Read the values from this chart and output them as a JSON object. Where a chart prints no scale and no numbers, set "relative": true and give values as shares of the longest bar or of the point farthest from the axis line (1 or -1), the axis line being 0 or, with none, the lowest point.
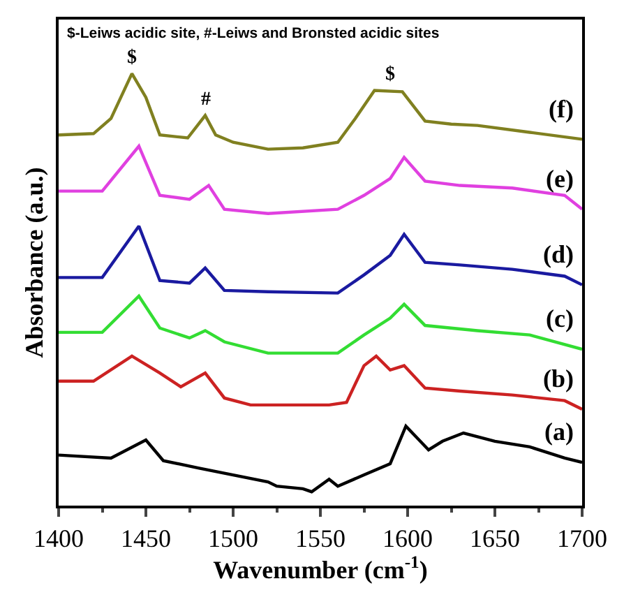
{
  "chart_data": {
    "type": "line",
    "relative": true,
    "xlabel": "Wavenumber (cm$^{-1}$)",
    "ylabel": "Absorbance (a.u.)",
    "xlim": [
      1400,
      1700
    ],
    "xticks": [
      1400,
      1450,
      1500,
      1550,
      1600,
      1650,
      1700
    ],
    "legend": false,
    "marker": "none",
    "line_style": "solid",
    "series": [
      {
        "name": "(a)",
        "color": "#000000",
        "x": [
          1400,
          1430,
          1450,
          1460,
          1480,
          1500,
          1520,
          1525,
          1540,
          1545,
          1555,
          1560,
          1575,
          1590,
          1599,
          1612,
          1620,
          1632,
          1650,
          1670,
          1690,
          1700
        ],
        "values": [
          0.117,
          0.11,
          0.152,
          0.104,
          0.087,
          0.071,
          0.055,
          0.045,
          0.039,
          0.032,
          0.061,
          0.045,
          0.071,
          0.097,
          0.184,
          0.129,
          0.149,
          0.168,
          0.149,
          0.136,
          0.11,
          0.1
        ]
      },
      {
        "name": "(b)",
        "color": "#cc2222",
        "x": [
          1400,
          1420,
          1442,
          1458,
          1470,
          1484,
          1495,
          1510,
          1555,
          1565,
          1575,
          1582,
          1590,
          1598,
          1610,
          1630,
          1660,
          1690,
          1700
        ],
        "values": [
          0.288,
          0.288,
          0.346,
          0.307,
          0.275,
          0.307,
          0.249,
          0.233,
          0.233,
          0.239,
          0.324,
          0.346,
          0.314,
          0.324,
          0.272,
          0.265,
          0.256,
          0.243,
          0.223
        ]
      },
      {
        "name": "(c)",
        "color": "#33dd33",
        "x": [
          1400,
          1425,
          1446,
          1458,
          1475,
          1484,
          1495,
          1520,
          1560,
          1575,
          1590,
          1598,
          1610,
          1640,
          1670,
          1700
        ],
        "values": [
          0.401,
          0.401,
          0.485,
          0.411,
          0.388,
          0.405,
          0.379,
          0.353,
          0.353,
          0.395,
          0.434,
          0.466,
          0.417,
          0.405,
          0.395,
          0.362
        ]
      },
      {
        "name": "(d)",
        "color": "#1a1aa0",
        "x": [
          1400,
          1425,
          1446,
          1458,
          1475,
          1484,
          1495,
          1520,
          1560,
          1575,
          1590,
          1598,
          1610,
          1630,
          1660,
          1690,
          1700
        ],
        "values": [
          0.528,
          0.528,
          0.647,
          0.521,
          0.515,
          0.55,
          0.498,
          0.495,
          0.492,
          0.534,
          0.579,
          0.628,
          0.563,
          0.557,
          0.547,
          0.531,
          0.511
        ]
      },
      {
        "name": "(e)",
        "color": "#e040e0",
        "x": [
          1400,
          1425,
          1446,
          1458,
          1475,
          1486,
          1495,
          1520,
          1560,
          1575,
          1590,
          1598,
          1610,
          1630,
          1660,
          1690,
          1700
        ],
        "values": [
          0.728,
          0.728,
          0.832,
          0.718,
          0.709,
          0.741,
          0.686,
          0.676,
          0.686,
          0.718,
          0.757,
          0.806,
          0.751,
          0.741,
          0.735,
          0.718,
          0.686
        ]
      },
      {
        "name": "(f)",
        "color": "#808020",
        "x": [
          1400,
          1420,
          1430,
          1442,
          1450,
          1458,
          1474,
          1484,
          1490,
          1500,
          1520,
          1540,
          1560,
          1570,
          1581,
          1597,
          1610,
          1625,
          1640,
          1670,
          1700
        ],
        "values": [
          0.858,
          0.861,
          0.896,
          1.0,
          0.945,
          0.858,
          0.851,
          0.903,
          0.858,
          0.841,
          0.825,
          0.828,
          0.841,
          0.896,
          0.961,
          0.958,
          0.89,
          0.883,
          0.88,
          0.864,
          0.848
        ]
      }
    ],
    "annotations": [
      "$-Leiws acidic site, #-Leiws and Bronsted acidic sites",
      {
        "text": "$",
        "x": 1442,
        "y": 1.0
      },
      {
        "text": "#",
        "x": 1484,
        "y": 0.903
      },
      {
        "text": "$",
        "x": 1590,
        "y": 0.961
      }
    ]
  }
}
